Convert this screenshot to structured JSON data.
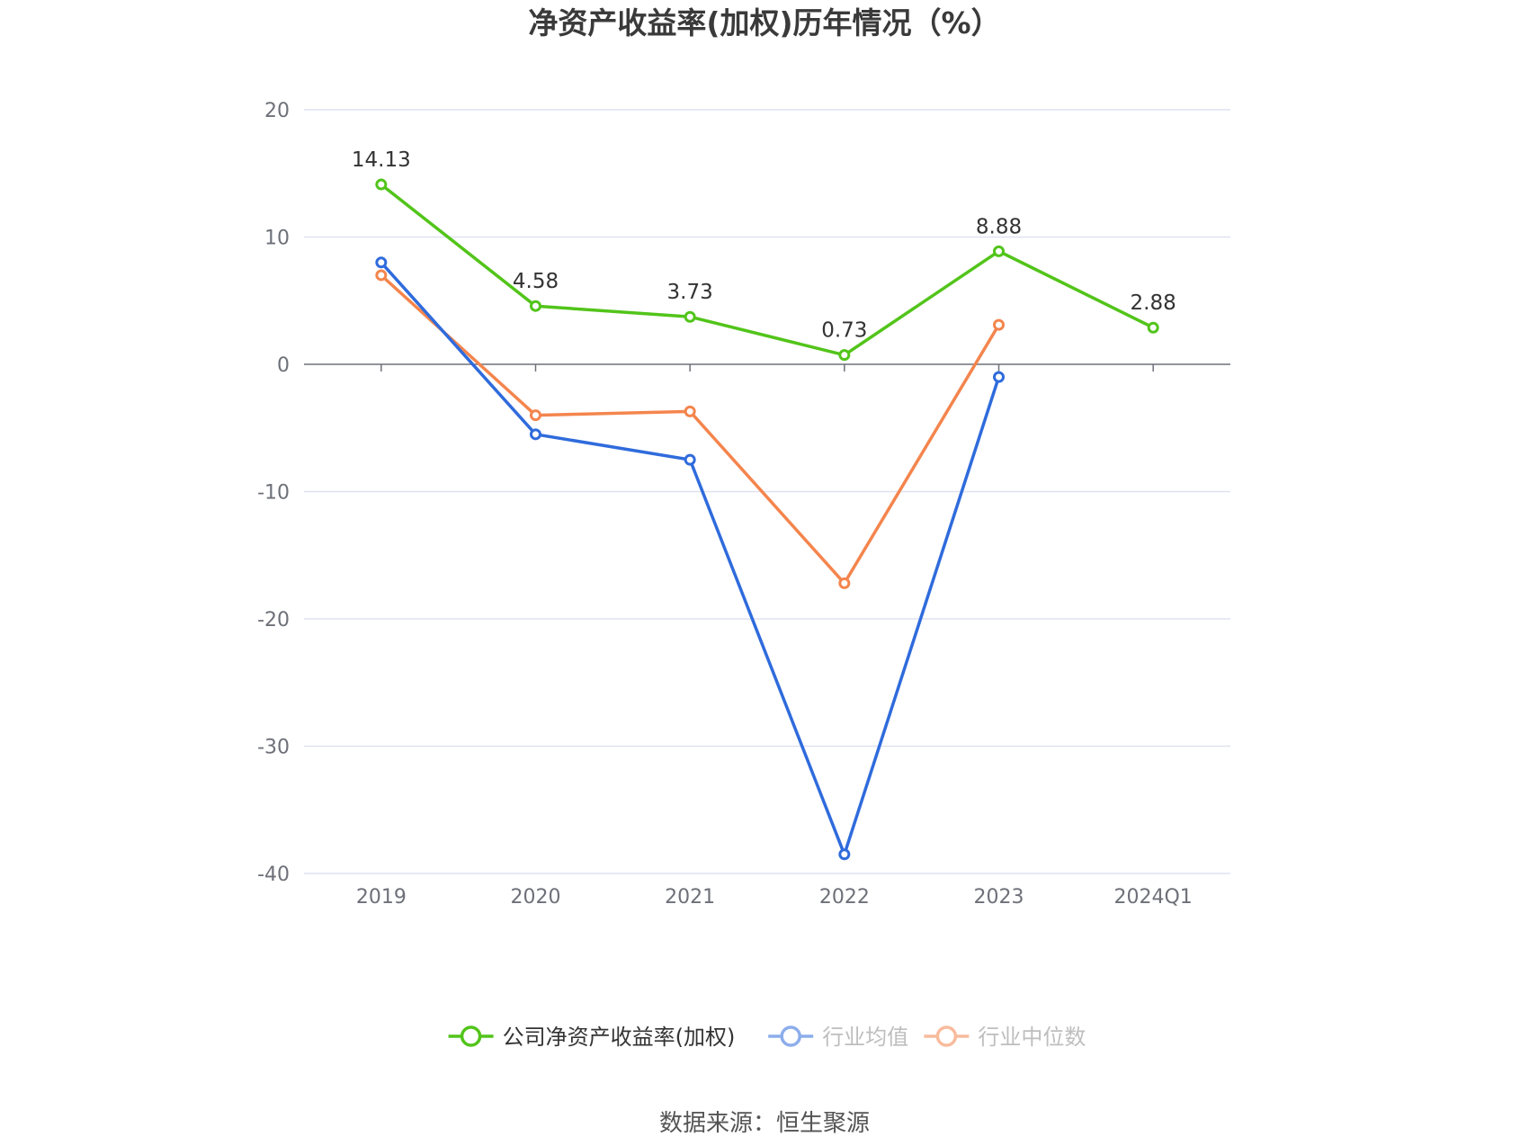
{
  "chart_data": {
    "type": "line",
    "title": "净资产收益率(加权)历年情况（%）",
    "categories": [
      "2019",
      "2020",
      "2021",
      "2022",
      "2023",
      "2024Q1"
    ],
    "ylim": [
      -40,
      20
    ],
    "yticks": [
      20,
      10,
      0,
      -10,
      -20,
      -30,
      -40
    ],
    "grid": true,
    "legend_position": "bottom",
    "series": [
      {
        "name": "公司净资产收益率(加权)",
        "color": "#52c41a",
        "values": [
          14.13,
          4.58,
          3.73,
          0.73,
          8.88,
          2.88
        ],
        "labels": [
          "14.13",
          "4.58",
          "3.73",
          "0.73",
          "8.88",
          "2.88"
        ]
      },
      {
        "name": "行业均值",
        "color": "#2f6bdc",
        "values": [
          8.0,
          -5.5,
          -7.5,
          -38.5,
          -1.0,
          null
        ]
      },
      {
        "name": "行业中位数",
        "color": "#f4854d",
        "values": [
          7.0,
          -4.0,
          -3.7,
          -17.2,
          3.1,
          null
        ]
      }
    ]
  },
  "source": "数据来源：恒生聚源"
}
